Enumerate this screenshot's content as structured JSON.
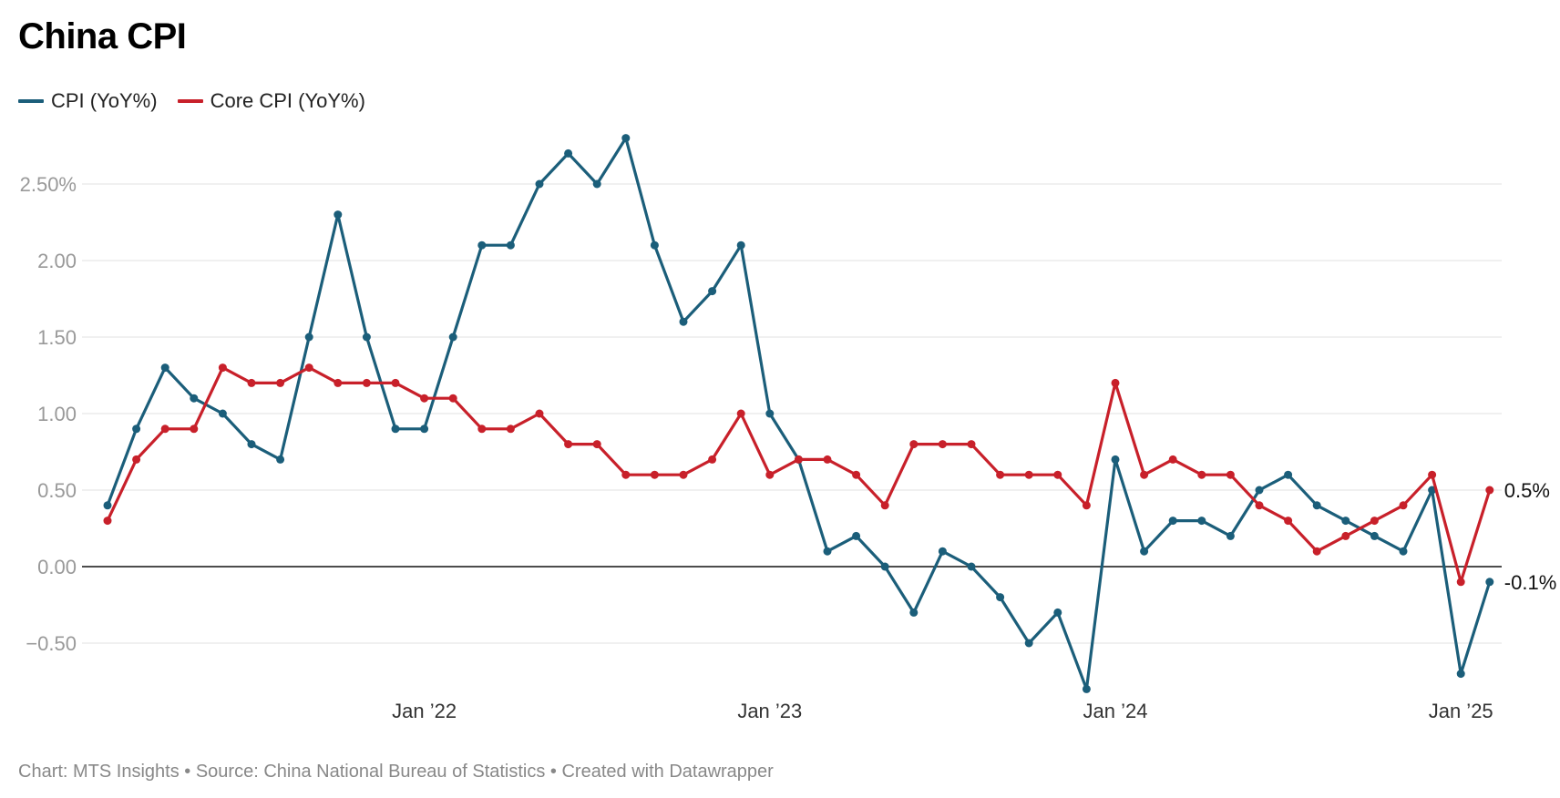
{
  "header": {
    "title": "China CPI"
  },
  "footer": {
    "credit": "Chart: MTS Insights • Source: China National Bureau of Statistics • Created with Datawrapper"
  },
  "chart_data": {
    "type": "line",
    "x_tick_labels": [
      "Jan ’22",
      "Jan ’23",
      "Jan ’24",
      "Jan ’25"
    ],
    "y_ticks": [
      2.5,
      2.0,
      1.5,
      1.0,
      0.5,
      0.0,
      -0.5
    ],
    "y_tick_labels": [
      "2.50%",
      "2.00",
      "1.50",
      "1.00",
      "0.50",
      "0.00",
      "−0.50"
    ],
    "ylim": [
      -0.8,
      2.8
    ],
    "legend_position": "top-left",
    "grid": true,
    "series": [
      {
        "name": "CPI (YoY%)",
        "color": "#1b5e7a",
        "end_label": "-0.1%",
        "values": [
          0.4,
          0.9,
          1.3,
          1.1,
          1.0,
          0.8,
          0.7,
          1.5,
          2.3,
          1.5,
          0.9,
          0.9,
          1.5,
          2.1,
          2.1,
          2.5,
          2.7,
          2.5,
          2.8,
          2.1,
          1.6,
          1.8,
          2.1,
          1.0,
          0.7,
          0.1,
          0.2,
          0.0,
          -0.3,
          0.1,
          0.0,
          -0.2,
          -0.5,
          -0.3,
          -0.8,
          0.7,
          0.1,
          0.3,
          0.3,
          0.2,
          0.5,
          0.6,
          0.4,
          0.3,
          0.2,
          0.1,
          0.5,
          -0.7,
          -0.1
        ]
      },
      {
        "name": "Core CPI (YoY%)",
        "color": "#c8202a",
        "end_label": "0.5%",
        "values": [
          0.3,
          0.7,
          0.9,
          0.9,
          1.3,
          1.2,
          1.2,
          1.3,
          1.2,
          1.2,
          1.2,
          1.1,
          1.1,
          0.9,
          0.9,
          1.0,
          0.8,
          0.8,
          0.6,
          0.6,
          0.6,
          0.7,
          1.0,
          0.6,
          0.7,
          0.7,
          0.6,
          0.4,
          0.8,
          0.8,
          0.8,
          0.6,
          0.6,
          0.6,
          0.4,
          1.2,
          0.6,
          0.7,
          0.6,
          0.6,
          0.4,
          0.3,
          0.1,
          0.2,
          0.3,
          0.4,
          0.6,
          -0.1,
          0.5
        ]
      }
    ]
  }
}
